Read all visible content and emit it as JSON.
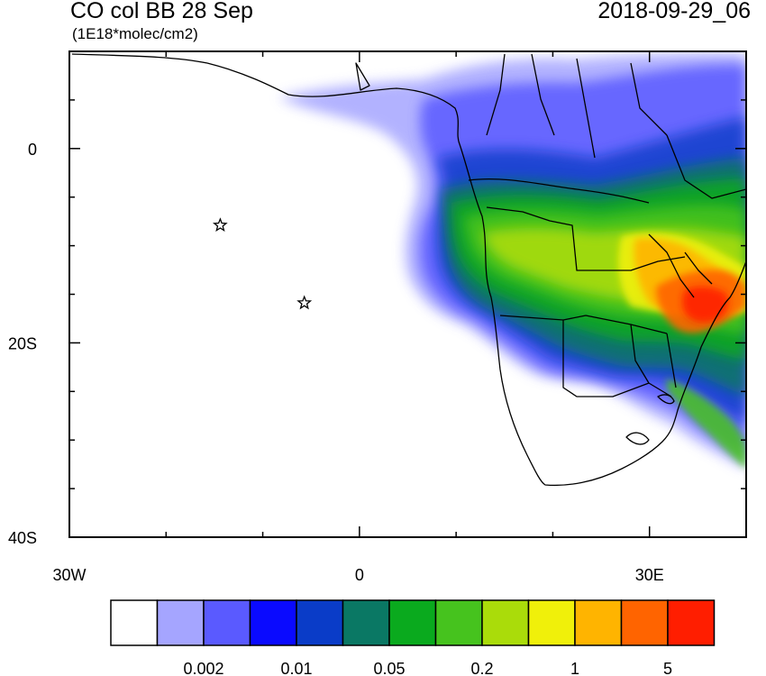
{
  "header": {
    "title": "CO col BB 28 Sep",
    "units": "(1E18*molec/cm2)",
    "datetime": "2018-09-29_06"
  },
  "map": {
    "lon_range": [
      -30,
      40
    ],
    "lat_range": [
      -40,
      10
    ],
    "x_ticks": [
      {
        "lon": -30,
        "label": "30W"
      },
      {
        "lon": 0,
        "label": "0"
      },
      {
        "lon": 30,
        "label": "30E"
      }
    ],
    "y_ticks": [
      {
        "lat": 0,
        "label": "0"
      },
      {
        "lat": -20,
        "label": "20S"
      },
      {
        "lat": -40,
        "label": "40S"
      }
    ],
    "star_markers": [
      {
        "lon": -14.4,
        "lat": -7.9
      },
      {
        "lon": -5.7,
        "lat": -15.9
      }
    ]
  },
  "colorbar": {
    "colors": [
      "#ffffff",
      "#a5a5ff",
      "#5a5aff",
      "#0a0aff",
      "#0a3cc8",
      "#0a7864",
      "#0aaa1e",
      "#46c31e",
      "#aadc0a",
      "#f0f00a",
      "#ffb400",
      "#ff6400",
      "#ff1e00"
    ],
    "labels": [
      {
        "after_box": 2,
        "text": "0.002"
      },
      {
        "after_box": 4,
        "text": "0.01"
      },
      {
        "after_box": 6,
        "text": "0.05"
      },
      {
        "after_box": 8,
        "text": "0.2"
      },
      {
        "after_box": 10,
        "text": "1"
      },
      {
        "after_box": 12,
        "text": "5"
      }
    ]
  }
}
